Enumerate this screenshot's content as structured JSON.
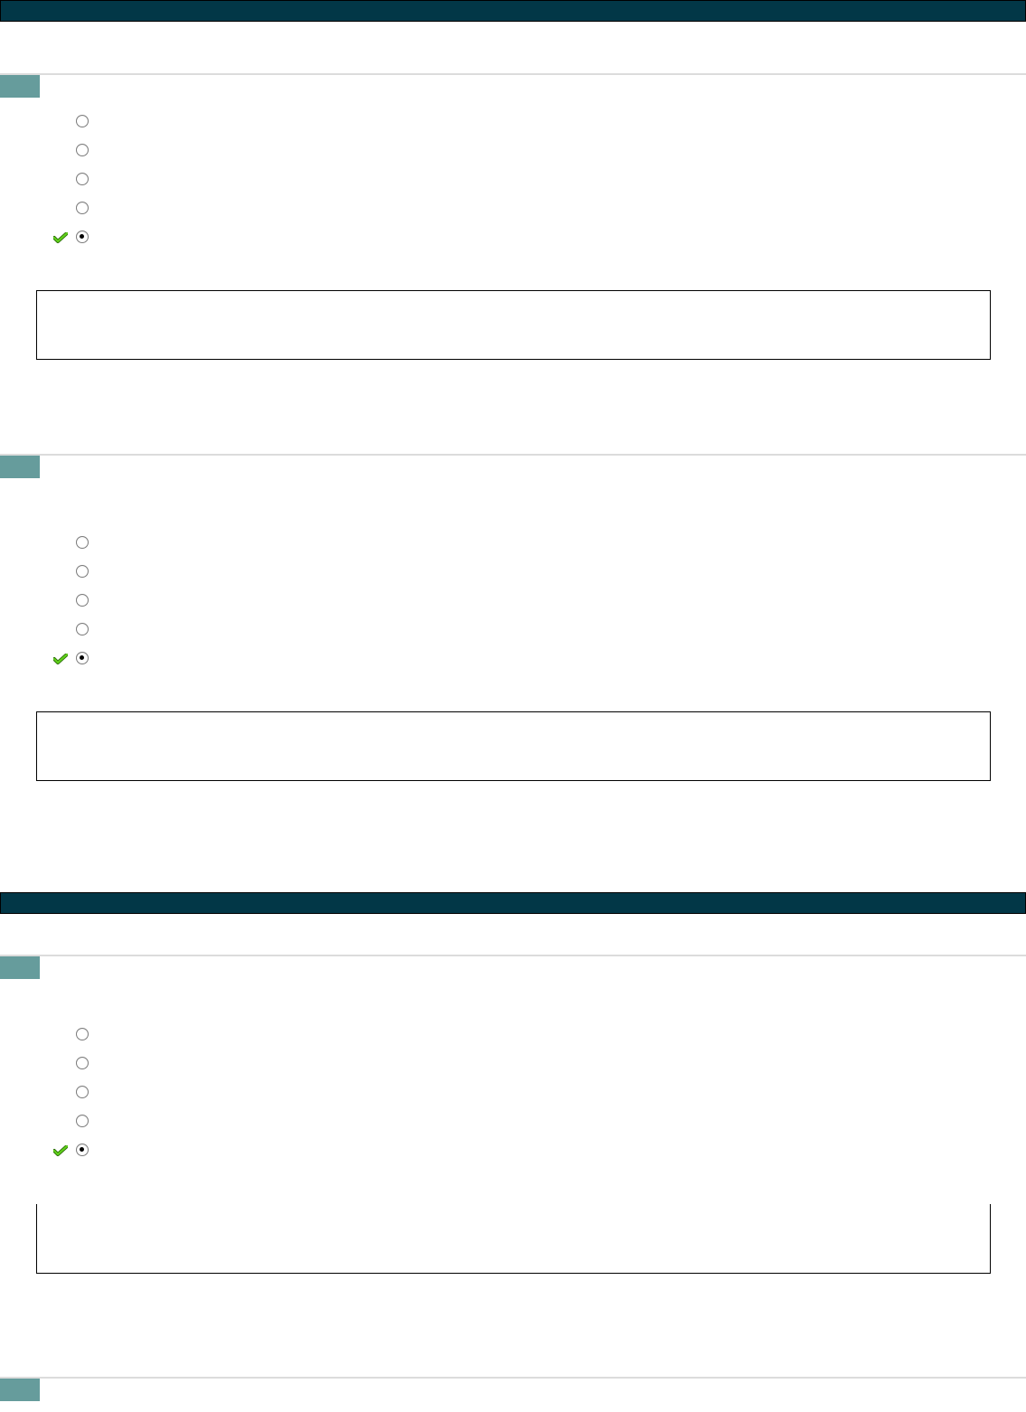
{
  "colors": {
    "header": "#023747",
    "question_marker": "#669c9c",
    "divider": "#dcdcdc",
    "check": "#5fcf1a"
  },
  "pages": [
    {
      "questions": [
        {
          "options": [
            {
              "selected": false
            },
            {
              "selected": false
            },
            {
              "selected": false
            },
            {
              "selected": false
            },
            {
              "selected": true,
              "correct": true
            }
          ]
        },
        {
          "options": [
            {
              "selected": false
            },
            {
              "selected": false
            },
            {
              "selected": false
            },
            {
              "selected": false
            },
            {
              "selected": true,
              "correct": true
            }
          ]
        }
      ]
    },
    {
      "questions": [
        {
          "options": [
            {
              "selected": false
            },
            {
              "selected": false
            },
            {
              "selected": false
            },
            {
              "selected": false
            },
            {
              "selected": true,
              "correct": true
            }
          ]
        },
        {
          "options": []
        }
      ]
    }
  ],
  "icons": {
    "check": "check-icon",
    "radio": "radio-button"
  }
}
